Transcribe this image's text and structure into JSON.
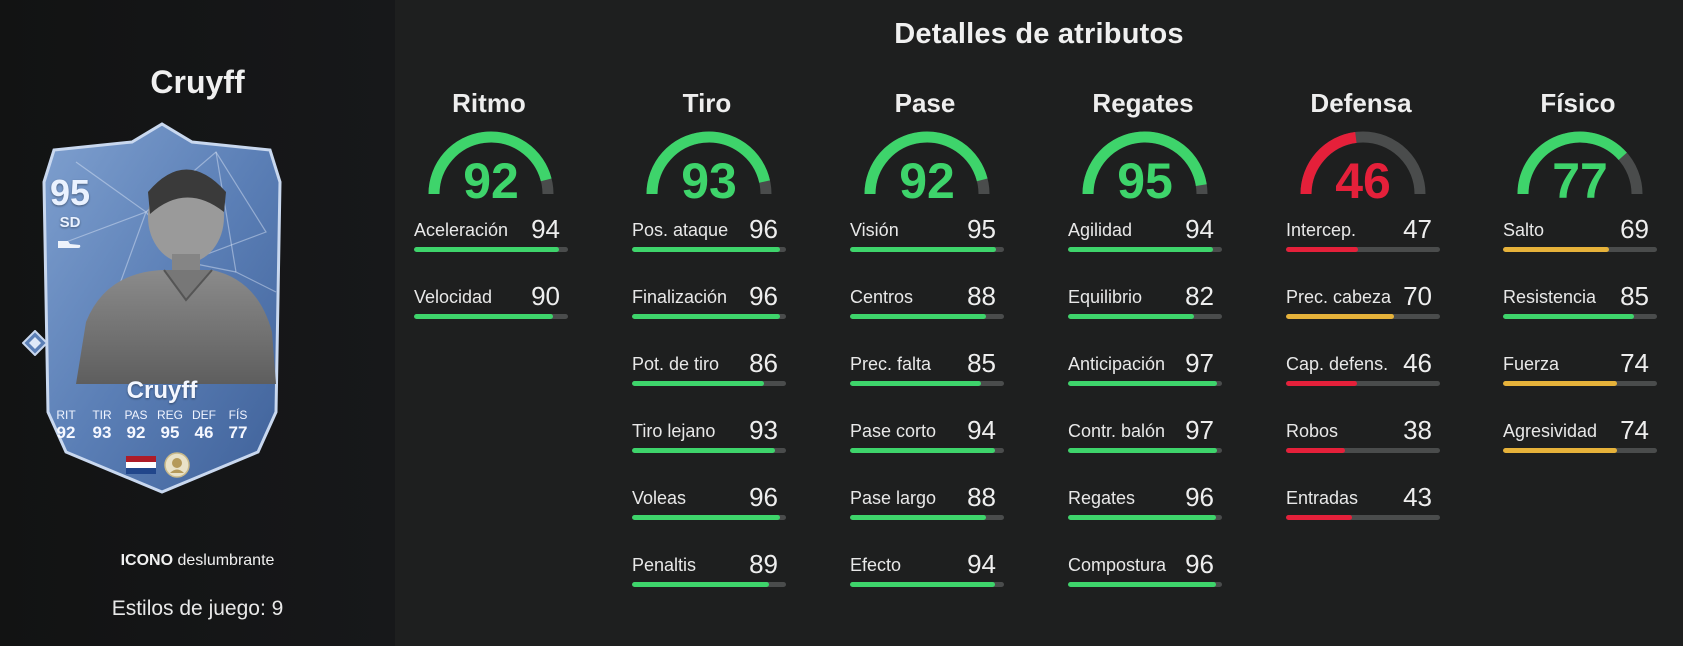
{
  "player": {
    "name": "Cruyff",
    "rating": "95",
    "position": "SD",
    "card_name": "Cruyff",
    "card_type_strong": "ICONO",
    "card_type_rest": "deslumbrante",
    "playstyles": "Estilos de juego: 9",
    "card_stats": [
      {
        "label": "RIT",
        "value": "92"
      },
      {
        "label": "TIR",
        "value": "93"
      },
      {
        "label": "PAS",
        "value": "92"
      },
      {
        "label": "REG",
        "value": "95"
      },
      {
        "label": "DEF",
        "value": "46"
      },
      {
        "label": "FÍS",
        "value": "77"
      }
    ]
  },
  "title": "Detalles de atributos",
  "colors": {
    "green": "#3ed46b",
    "yellow": "#e6b23a",
    "red": "#e5203a",
    "track": "#4a4c4c"
  },
  "categories": [
    {
      "name": "Ritmo",
      "value": 92,
      "color": "green",
      "attributes": [
        {
          "name": "Aceleración",
          "value": 94
        },
        {
          "name": "Velocidad",
          "value": 90
        }
      ]
    },
    {
      "name": "Tiro",
      "value": 93,
      "color": "green",
      "attributes": [
        {
          "name": "Pos. ataque",
          "value": 96
        },
        {
          "name": "Finalización",
          "value": 96
        },
        {
          "name": "Pot. de tiro",
          "value": 86
        },
        {
          "name": "Tiro lejano",
          "value": 93
        },
        {
          "name": "Voleas",
          "value": 96
        },
        {
          "name": "Penaltis",
          "value": 89
        }
      ]
    },
    {
      "name": "Pase",
      "value": 92,
      "color": "green",
      "attributes": [
        {
          "name": "Visión",
          "value": 95
        },
        {
          "name": "Centros",
          "value": 88
        },
        {
          "name": "Prec. falta",
          "value": 85
        },
        {
          "name": "Pase corto",
          "value": 94
        },
        {
          "name": "Pase largo",
          "value": 88
        },
        {
          "name": "Efecto",
          "value": 94
        }
      ]
    },
    {
      "name": "Regates",
      "value": 95,
      "color": "green",
      "attributes": [
        {
          "name": "Agilidad",
          "value": 94
        },
        {
          "name": "Equilibrio",
          "value": 82
        },
        {
          "name": "Anticipación",
          "value": 97
        },
        {
          "name": "Contr. balón",
          "value": 97
        },
        {
          "name": "Regates",
          "value": 96
        },
        {
          "name": "Compostura",
          "value": 96
        }
      ]
    },
    {
      "name": "Defensa",
      "value": 46,
      "color": "red",
      "attributes": [
        {
          "name": "Intercep.",
          "value": 47
        },
        {
          "name": "Prec. cabeza",
          "value": 70
        },
        {
          "name": "Cap. defens.",
          "value": 46
        },
        {
          "name": "Robos",
          "value": 38
        },
        {
          "name": "Entradas",
          "value": 43
        }
      ]
    },
    {
      "name": "Físico",
      "value": 77,
      "color": "green",
      "attributes": [
        {
          "name": "Salto",
          "value": 69
        },
        {
          "name": "Resistencia",
          "value": 85
        },
        {
          "name": "Fuerza",
          "value": 74
        },
        {
          "name": "Agresividad",
          "value": 74
        }
      ]
    }
  ]
}
